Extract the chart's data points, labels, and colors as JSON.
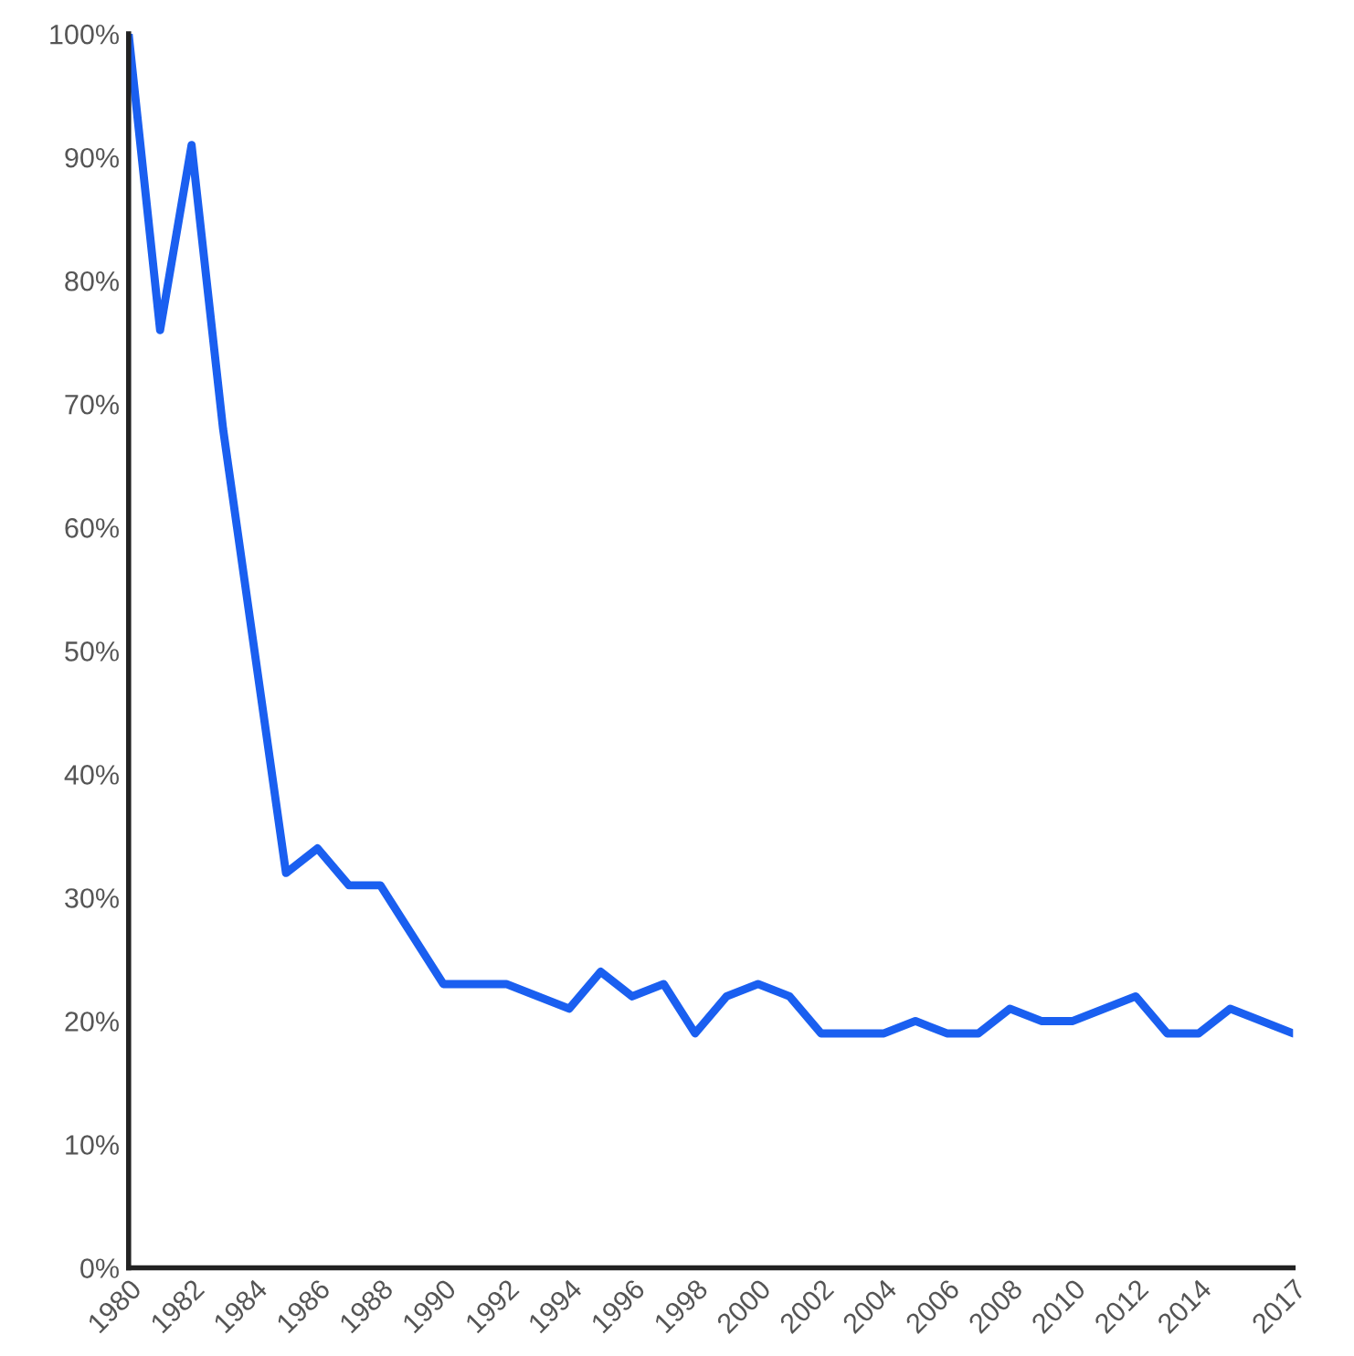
{
  "chart_data": {
    "type": "line",
    "x": [
      1980,
      1981,
      1982,
      1983,
      1984,
      1985,
      1986,
      1987,
      1988,
      1989,
      1990,
      1991,
      1992,
      1993,
      1994,
      1995,
      1996,
      1997,
      1998,
      1999,
      2000,
      2001,
      2002,
      2003,
      2004,
      2005,
      2006,
      2007,
      2008,
      2009,
      2010,
      2011,
      2012,
      2013,
      2014,
      2015,
      2016,
      2017
    ],
    "series": [
      {
        "color": "#1a5ff0",
        "values": [
          100,
          76,
          91,
          68,
          50,
          32,
          34,
          31,
          31,
          27,
          23,
          23,
          23,
          22,
          21,
          24,
          22,
          23,
          19,
          22,
          23,
          22,
          19,
          19,
          19,
          20,
          19,
          19,
          21,
          20,
          20,
          21,
          22,
          19,
          19,
          21,
          20,
          19
        ]
      }
    ],
    "xlim": [
      1980,
      2017
    ],
    "xticks": [
      1980,
      1982,
      1984,
      1986,
      1988,
      1990,
      1992,
      1994,
      1996,
      1998,
      2000,
      2002,
      2004,
      2006,
      2008,
      2010,
      2012,
      2014,
      2017
    ],
    "ylim": [
      0,
      100
    ],
    "yticks": [
      {
        "value": 0,
        "label": "0%"
      },
      {
        "value": 10,
        "label": "10%"
      },
      {
        "value": 20,
        "label": "20%"
      },
      {
        "value": 30,
        "label": "30%"
      },
      {
        "value": 40,
        "label": "40%"
      },
      {
        "value": 50,
        "label": "50%"
      },
      {
        "value": 60,
        "label": "60%"
      },
      {
        "value": 70,
        "label": "70%"
      },
      {
        "value": 80,
        "label": "80%"
      },
      {
        "value": 90,
        "label": "90%"
      },
      {
        "value": 100,
        "label": "100%"
      }
    ],
    "grid": false,
    "legend": false,
    "marker": "none",
    "line_style": "solid"
  }
}
